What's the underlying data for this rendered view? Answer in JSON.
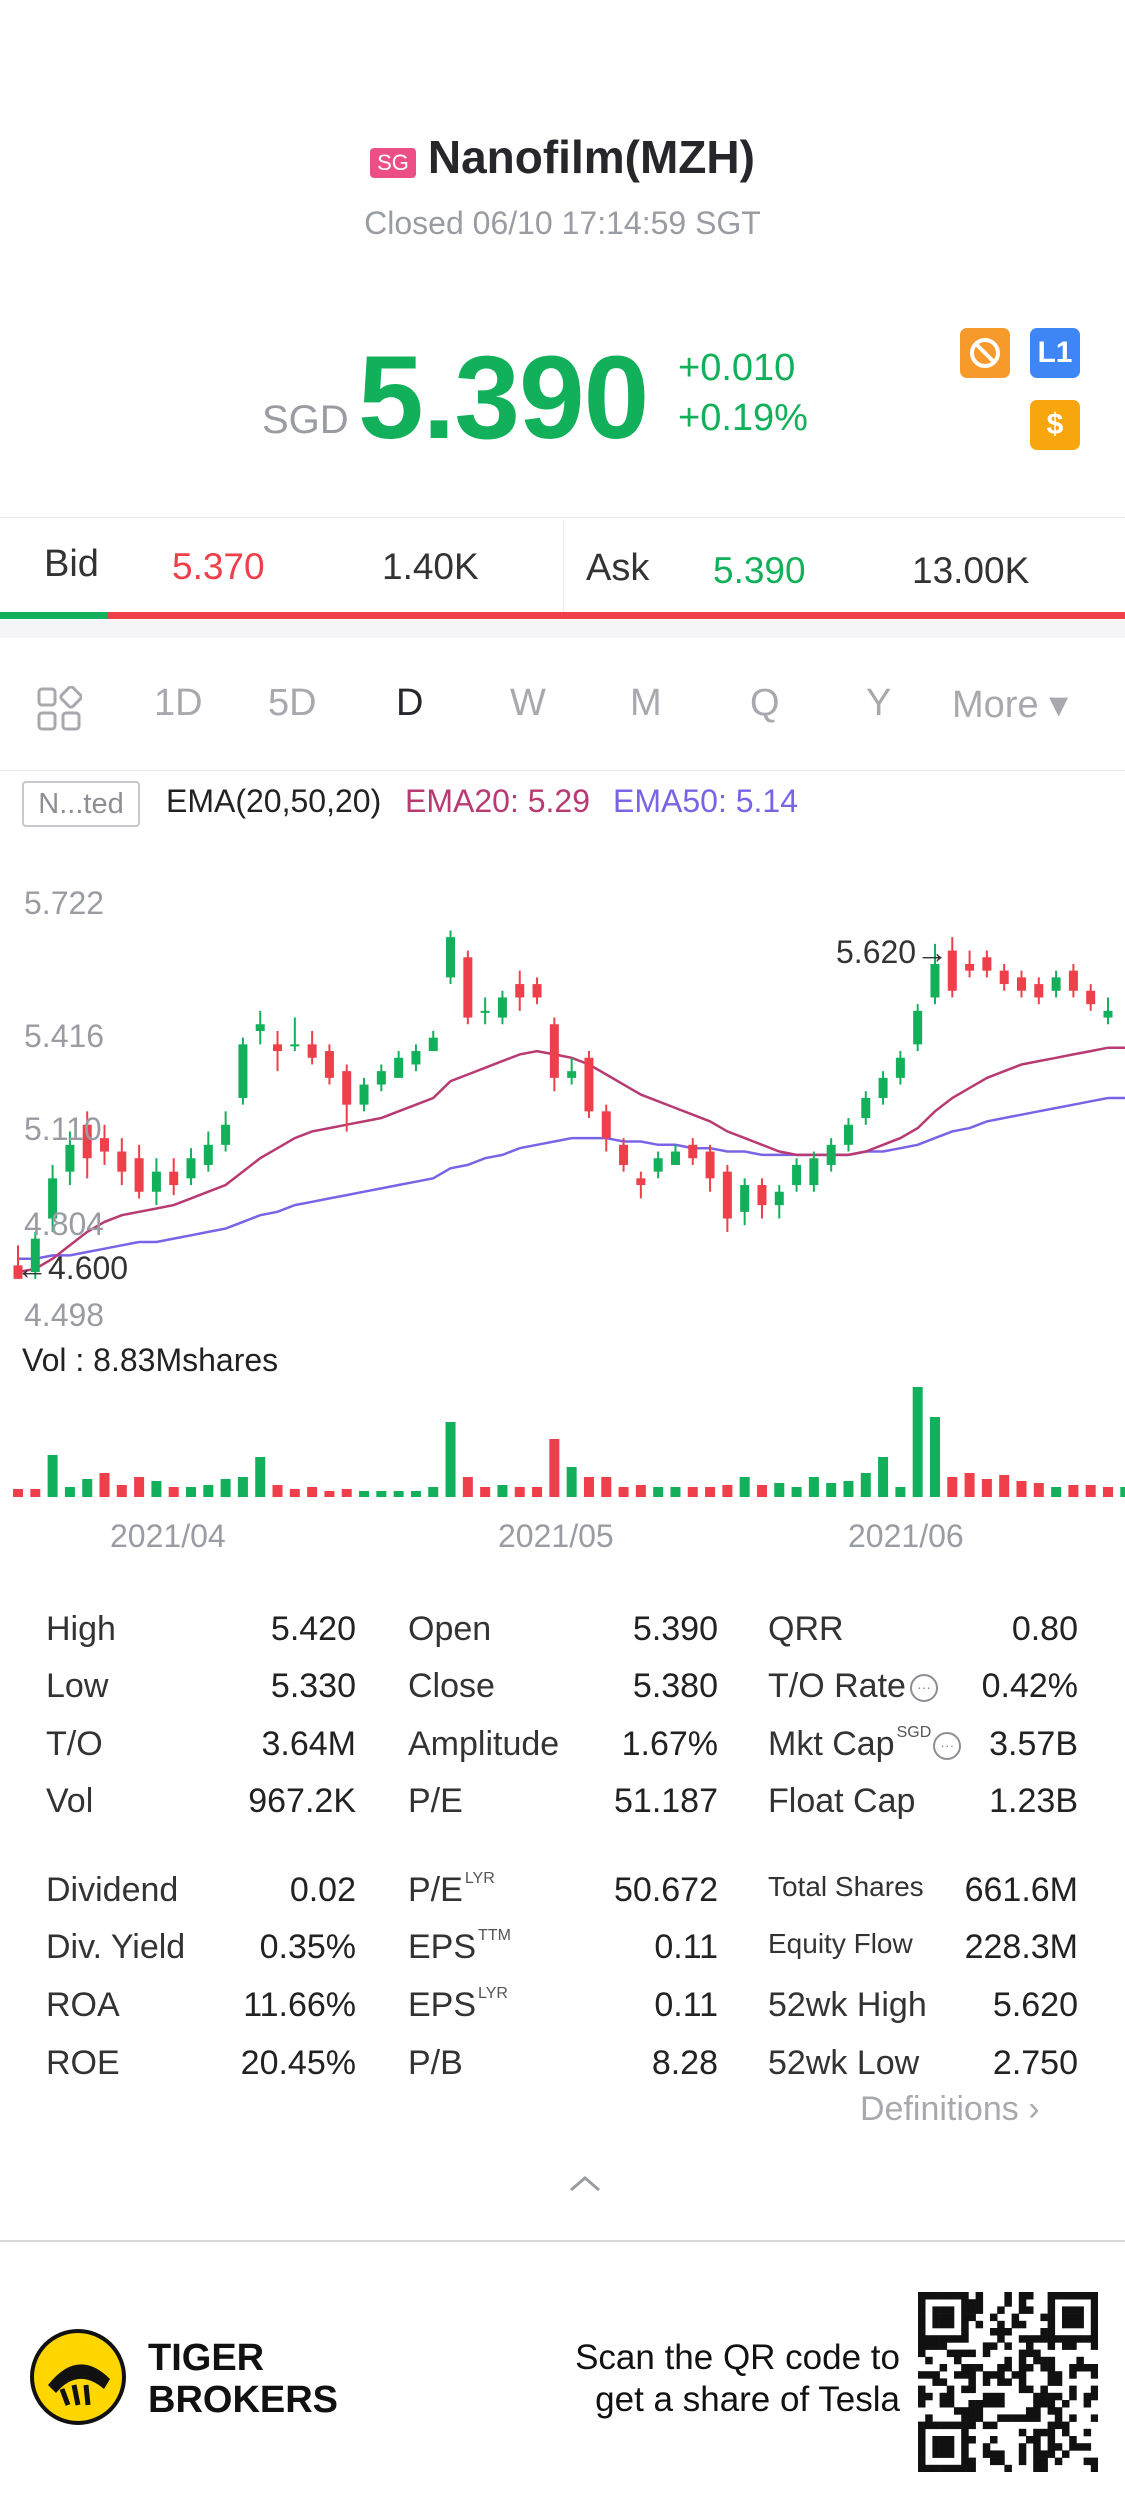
{
  "header": {
    "market_badge": "SG",
    "title": "Nanofilm(MZH)",
    "status": "Closed 06/10 17:14:59 SGT"
  },
  "quote": {
    "currency": "SGD",
    "price": "5.390",
    "change": "+0.010",
    "change_pct": "+0.19%",
    "badges": [
      {
        "icon": "no-short-sell-icon",
        "label": "",
        "color": "#f59a2b"
      },
      {
        "icon": "level1-icon",
        "label": "L1",
        "color": "#3e86f5"
      },
      {
        "icon": "dollar-icon",
        "label": "$",
        "color": "#f7a60d"
      }
    ]
  },
  "bidask": {
    "bid_label": "Bid",
    "bid_price": "5.370",
    "bid_size": "1.40K",
    "ask_label": "Ask",
    "ask_price": "5.390",
    "ask_size": "13.00K",
    "bid_share": 0.096
  },
  "tabs": {
    "grid_icon": "grid-icon",
    "items": [
      "1D",
      "5D",
      "D",
      "W",
      "M",
      "Q",
      "Y"
    ],
    "selected": "D",
    "more": "More ▾"
  },
  "indicator": {
    "box_label": "N...ted",
    "ema_label": "EMA(20,50,20)",
    "ema20": "EMA20: 5.29",
    "ema50": "EMA50: 5.14"
  },
  "chart_data": {
    "type": "candlestick",
    "y_ticks": [
      "5.722",
      "5.416",
      "5.110",
      "4.804",
      "4.498"
    ],
    "ylim": [
      4.498,
      5.722
    ],
    "high_marker": "5.620→",
    "low_marker": "←4.600",
    "x_ticks": [
      "2021/04",
      "2021/05",
      "2021/06"
    ],
    "volume_label": "Vol  : 8.83Mshares",
    "candles": [
      {
        "o": 4.64,
        "c": 4.6,
        "h": 4.7,
        "l": 4.6
      },
      {
        "o": 4.62,
        "c": 4.72,
        "h": 4.74,
        "l": 4.6
      },
      {
        "o": 4.78,
        "c": 4.9,
        "h": 4.94,
        "l": 4.74
      },
      {
        "o": 4.92,
        "c": 5.0,
        "h": 5.04,
        "l": 4.88
      },
      {
        "o": 5.06,
        "c": 4.96,
        "h": 5.1,
        "l": 4.9
      },
      {
        "o": 5.02,
        "c": 4.98,
        "h": 5.06,
        "l": 4.94
      },
      {
        "o": 4.98,
        "c": 4.92,
        "h": 5.02,
        "l": 4.88
      },
      {
        "o": 4.96,
        "c": 4.86,
        "h": 5.0,
        "l": 4.84
      },
      {
        "o": 4.86,
        "c": 4.92,
        "h": 4.96,
        "l": 4.82
      },
      {
        "o": 4.92,
        "c": 4.88,
        "h": 4.96,
        "l": 4.85
      },
      {
        "o": 4.9,
        "c": 4.96,
        "h": 4.99,
        "l": 4.88
      },
      {
        "o": 4.94,
        "c": 5.0,
        "h": 5.04,
        "l": 4.92
      },
      {
        "o": 5.0,
        "c": 5.06,
        "h": 5.1,
        "l": 4.98
      },
      {
        "o": 5.14,
        "c": 5.3,
        "h": 5.32,
        "l": 5.12
      },
      {
        "o": 5.34,
        "c": 5.36,
        "h": 5.4,
        "l": 5.3
      },
      {
        "o": 5.3,
        "c": 5.28,
        "h": 5.34,
        "l": 5.22
      },
      {
        "o": 5.3,
        "c": 5.3,
        "h": 5.38,
        "l": 5.28
      },
      {
        "o": 5.3,
        "c": 5.26,
        "h": 5.34,
        "l": 5.24
      },
      {
        "o": 5.28,
        "c": 5.2,
        "h": 5.3,
        "l": 5.18
      },
      {
        "o": 5.22,
        "c": 5.12,
        "h": 5.24,
        "l": 5.04
      },
      {
        "o": 5.12,
        "c": 5.18,
        "h": 5.2,
        "l": 5.1
      },
      {
        "o": 5.18,
        "c": 5.22,
        "h": 5.24,
        "l": 5.16
      },
      {
        "o": 5.2,
        "c": 5.26,
        "h": 5.28,
        "l": 5.2
      },
      {
        "o": 5.24,
        "c": 5.28,
        "h": 5.3,
        "l": 5.22
      },
      {
        "o": 5.28,
        "c": 5.32,
        "h": 5.34,
        "l": 5.28
      },
      {
        "o": 5.5,
        "c": 5.62,
        "h": 5.64,
        "l": 5.48
      },
      {
        "o": 5.56,
        "c": 5.38,
        "h": 5.58,
        "l": 5.36
      },
      {
        "o": 5.4,
        "c": 5.4,
        "h": 5.44,
        "l": 5.36
      },
      {
        "o": 5.38,
        "c": 5.44,
        "h": 5.46,
        "l": 5.36
      },
      {
        "o": 5.48,
        "c": 5.44,
        "h": 5.52,
        "l": 5.4
      },
      {
        "o": 5.48,
        "c": 5.44,
        "h": 5.5,
        "l": 5.42
      },
      {
        "o": 5.36,
        "c": 5.2,
        "h": 5.38,
        "l": 5.16
      },
      {
        "o": 5.2,
        "c": 5.22,
        "h": 5.26,
        "l": 5.18
      },
      {
        "o": 5.26,
        "c": 5.1,
        "h": 5.28,
        "l": 5.08
      },
      {
        "o": 5.1,
        "c": 5.02,
        "h": 5.12,
        "l": 4.98
      },
      {
        "o": 5.0,
        "c": 4.94,
        "h": 5.02,
        "l": 4.92
      },
      {
        "o": 4.9,
        "c": 4.88,
        "h": 4.92,
        "l": 4.84
      },
      {
        "o": 4.92,
        "c": 4.96,
        "h": 4.98,
        "l": 4.9
      },
      {
        "o": 4.94,
        "c": 4.98,
        "h": 5.0,
        "l": 4.94
      },
      {
        "o": 5.0,
        "c": 4.96,
        "h": 5.02,
        "l": 4.94
      },
      {
        "o": 4.98,
        "c": 4.9,
        "h": 5.0,
        "l": 4.86
      },
      {
        "o": 4.92,
        "c": 4.78,
        "h": 4.94,
        "l": 4.74
      },
      {
        "o": 4.8,
        "c": 4.88,
        "h": 4.9,
        "l": 4.76
      },
      {
        "o": 4.88,
        "c": 4.82,
        "h": 4.9,
        "l": 4.78
      },
      {
        "o": 4.82,
        "c": 4.86,
        "h": 4.88,
        "l": 4.78
      },
      {
        "o": 4.88,
        "c": 4.94,
        "h": 4.96,
        "l": 4.86
      },
      {
        "o": 4.88,
        "c": 4.96,
        "h": 4.98,
        "l": 4.86
      },
      {
        "o": 4.94,
        "c": 5.0,
        "h": 5.02,
        "l": 4.92
      },
      {
        "o": 5.0,
        "c": 5.06,
        "h": 5.08,
        "l": 4.98
      },
      {
        "o": 5.08,
        "c": 5.14,
        "h": 5.16,
        "l": 5.06
      },
      {
        "o": 5.14,
        "c": 5.2,
        "h": 5.22,
        "l": 5.12
      },
      {
        "o": 5.2,
        "c": 5.26,
        "h": 5.28,
        "l": 5.18
      },
      {
        "o": 5.3,
        "c": 5.4,
        "h": 5.42,
        "l": 5.28
      },
      {
        "o": 5.44,
        "c": 5.54,
        "h": 5.6,
        "l": 5.42
      },
      {
        "o": 5.58,
        "c": 5.46,
        "h": 5.62,
        "l": 5.44
      },
      {
        "o": 5.54,
        "c": 5.52,
        "h": 5.58,
        "l": 5.5
      },
      {
        "o": 5.56,
        "c": 5.52,
        "h": 5.58,
        "l": 5.5
      },
      {
        "o": 5.52,
        "c": 5.48,
        "h": 5.54,
        "l": 5.46
      },
      {
        "o": 5.5,
        "c": 5.46,
        "h": 5.52,
        "l": 5.44
      },
      {
        "o": 5.48,
        "c": 5.44,
        "h": 5.5,
        "l": 5.42
      },
      {
        "o": 5.46,
        "c": 5.5,
        "h": 5.52,
        "l": 5.44
      },
      {
        "o": 5.52,
        "c": 5.46,
        "h": 5.54,
        "l": 5.44
      },
      {
        "o": 5.46,
        "c": 5.42,
        "h": 5.48,
        "l": 5.4
      },
      {
        "o": 5.38,
        "c": 5.4,
        "h": 5.44,
        "l": 5.36
      }
    ],
    "ema20": [
      4.62,
      4.63,
      4.66,
      4.7,
      4.74,
      4.77,
      4.79,
      4.8,
      4.81,
      4.82,
      4.84,
      4.86,
      4.88,
      4.92,
      4.96,
      4.99,
      5.02,
      5.04,
      5.05,
      5.06,
      5.07,
      5.08,
      5.1,
      5.12,
      5.14,
      5.19,
      5.21,
      5.23,
      5.25,
      5.27,
      5.28,
      5.27,
      5.26,
      5.24,
      5.21,
      5.18,
      5.15,
      5.13,
      5.11,
      5.09,
      5.07,
      5.04,
      5.02,
      5.0,
      4.98,
      4.97,
      4.97,
      4.97,
      4.97,
      4.98,
      5.0,
      5.02,
      5.05,
      5.1,
      5.14,
      5.17,
      5.2,
      5.22,
      5.24,
      5.25,
      5.26,
      5.27,
      5.28,
      5.29,
      5.29
    ],
    "ema50": [
      4.66,
      4.66,
      4.67,
      4.67,
      4.68,
      4.69,
      4.7,
      4.71,
      4.71,
      4.72,
      4.73,
      4.74,
      4.75,
      4.77,
      4.79,
      4.8,
      4.82,
      4.83,
      4.84,
      4.85,
      4.86,
      4.87,
      4.88,
      4.89,
      4.9,
      4.93,
      4.94,
      4.96,
      4.97,
      4.99,
      5.0,
      5.01,
      5.02,
      5.02,
      5.02,
      5.01,
      5.01,
      5.0,
      5.0,
      4.99,
      4.99,
      4.98,
      4.98,
      4.97,
      4.97,
      4.97,
      4.97,
      4.97,
      4.97,
      4.98,
      4.98,
      4.99,
      5.0,
      5.02,
      5.04,
      5.05,
      5.07,
      5.08,
      5.09,
      5.1,
      5.11,
      5.12,
      5.13,
      5.14,
      5.14
    ],
    "volume": [
      8,
      8,
      42,
      10,
      18,
      24,
      12,
      20,
      16,
      10,
      10,
      12,
      18,
      20,
      40,
      12,
      8,
      10,
      6,
      8,
      6,
      6,
      6,
      6,
      10,
      75,
      20,
      10,
      12,
      10,
      10,
      58,
      30,
      20,
      20,
      10,
      12,
      10,
      10,
      10,
      10,
      12,
      20,
      12,
      14,
      10,
      20,
      14,
      16,
      24,
      40,
      10,
      110,
      80,
      20,
      24,
      18,
      22,
      16,
      14,
      10,
      12,
      12,
      10,
      10
    ],
    "volume_up": [
      false,
      false,
      true,
      true,
      true,
      false,
      false,
      false,
      true,
      false,
      true,
      true,
      true,
      true,
      true,
      false,
      false,
      false,
      false,
      false,
      true,
      true,
      true,
      true,
      true,
      true,
      false,
      false,
      true,
      false,
      false,
      false,
      true,
      false,
      false,
      false,
      false,
      true,
      true,
      false,
      false,
      false,
      true,
      false,
      true,
      true,
      true,
      true,
      true,
      true,
      true,
      true,
      true,
      true,
      false,
      false,
      false,
      false,
      false,
      false,
      true,
      false,
      false,
      false,
      true
    ]
  },
  "stats": {
    "col1": [
      {
        "label": "High",
        "value": "5.420"
      },
      {
        "label": "Low",
        "value": "5.330"
      },
      {
        "label": "T/O",
        "value": "3.64M"
      },
      {
        "label": "Vol",
        "value": "967.2K"
      },
      {
        "label": "Dividend",
        "value": "0.02"
      },
      {
        "label": "Div. Yield",
        "value": "0.35%"
      },
      {
        "label": "ROA",
        "value": "11.66%"
      },
      {
        "label": "ROE",
        "value": "20.45%"
      }
    ],
    "col2": [
      {
        "label": "Open",
        "value": "5.390",
        "sup": ""
      },
      {
        "label": "Close",
        "value": "5.380",
        "sup": ""
      },
      {
        "label": "Amplitude",
        "value": "1.67%",
        "sup": ""
      },
      {
        "label": "P/E",
        "value": "51.187",
        "sup": ""
      },
      {
        "label": "P/E",
        "value": "50.672",
        "sup": "LYR"
      },
      {
        "label": "EPS",
        "value": "0.11",
        "sup": "TTM"
      },
      {
        "label": "EPS",
        "value": "0.11",
        "sup": "LYR"
      },
      {
        "label": "P/B",
        "value": "8.28",
        "sup": ""
      }
    ],
    "col3": [
      {
        "label": "QRR",
        "value": "0.80",
        "sup": ""
      },
      {
        "label": "T/O Rate",
        "value": "0.42%",
        "sup": ""
      },
      {
        "label": "Mkt Cap",
        "value": "3.57B",
        "sup": "SGD"
      },
      {
        "label": "Float Cap",
        "value": "1.23B",
        "sup": ""
      },
      {
        "label": "Total Shares",
        "value": "661.6M",
        "sup": ""
      },
      {
        "label": "Equity Flow",
        "value": "228.3M",
        "sup": ""
      },
      {
        "label": "52wk High",
        "value": "5.620",
        "sup": ""
      },
      {
        "label": "52wk Low",
        "value": "2.750",
        "sup": ""
      }
    ],
    "definitions": "Definitions ›"
  },
  "footer": {
    "brand_line1": "TIGER",
    "brand_line2": "BROKERS",
    "promo_line1": "Scan the QR code to",
    "promo_line2": "get a share of Tesla"
  }
}
